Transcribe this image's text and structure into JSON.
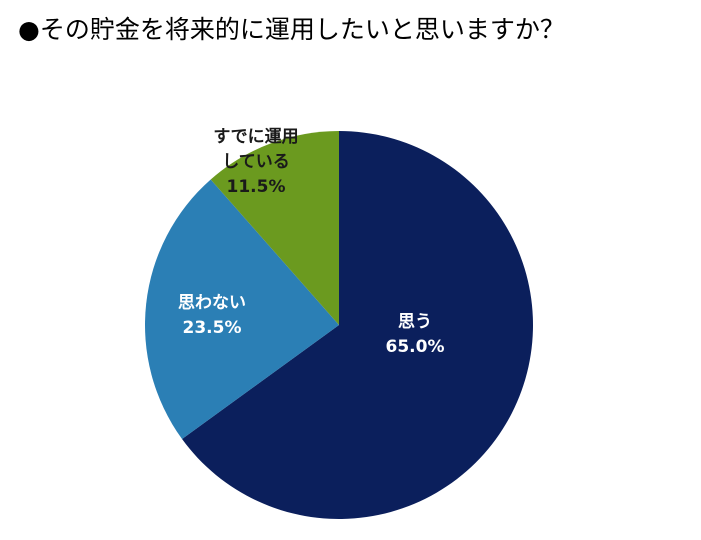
{
  "title": "●その貯金を将来的に運用したいと思いますか？",
  "chart_data": {
    "type": "pie",
    "title": "●その貯金を将来的に運用したいと思いますか？",
    "slices": [
      {
        "name": "思う",
        "value": 65.0,
        "value_label": "65.0%",
        "label_lines": [
          "思う"
        ],
        "color": "#0b1f5c",
        "text_color": "#ffffff"
      },
      {
        "name": "思わない",
        "value": 23.5,
        "value_label": "23.5%",
        "label_lines": [
          "思わない"
        ],
        "color": "#2b7fb5",
        "text_color": "#ffffff"
      },
      {
        "name": "すでに運用している",
        "value": 11.5,
        "value_label": "11.5%",
        "label_lines": [
          "すでに運用",
          "している"
        ],
        "color": "#6b9a1f",
        "text_color": "#1a1a1a"
      }
    ],
    "start_angle_deg": 0,
    "direction": "clockwise",
    "legend": "none"
  }
}
